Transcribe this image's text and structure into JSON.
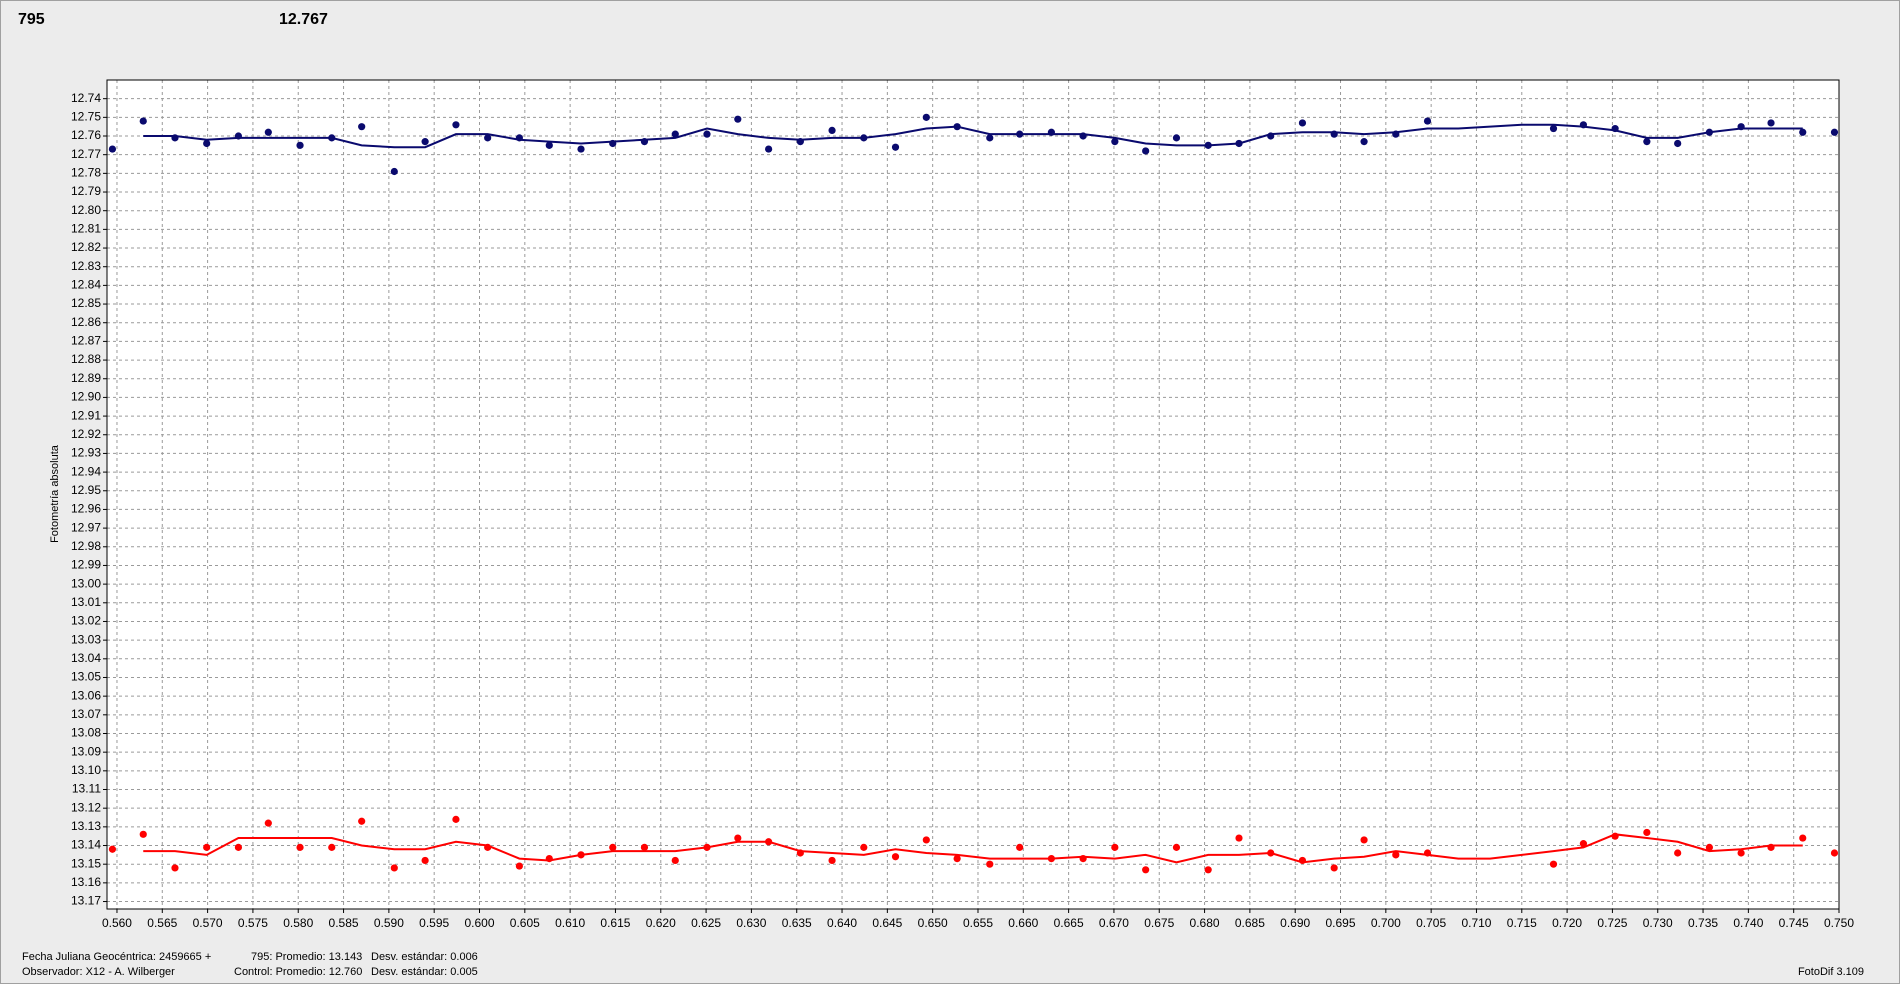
{
  "header": {
    "target": "795",
    "target_color": "#e00000",
    "control": "12.767",
    "control_color": "#1a1a8c"
  },
  "chart_data": {
    "type": "scatter",
    "y_label": "Fotometría absoluta",
    "inverted": true,
    "grid": true,
    "xlim": [
      0.5589,
      0.75
    ],
    "ylim": [
      12.73,
      13.174
    ],
    "xticks": [
      {
        "value": 0.56,
        "label": "0.560"
      },
      0.565,
      {
        "value": 0.57,
        "label": "0.570"
      },
      0.575,
      {
        "value": 0.58,
        "label": "0.580"
      },
      0.585,
      {
        "value": 0.59,
        "label": "0.590"
      },
      0.595,
      {
        "value": 0.6,
        "label": "0.600"
      },
      0.605,
      {
        "value": 0.61,
        "label": "0.610"
      },
      0.615,
      {
        "value": 0.62,
        "label": "0.620"
      },
      0.625,
      {
        "value": 0.63,
        "label": "0.630"
      },
      0.635,
      {
        "value": 0.64,
        "label": "0.640"
      },
      0.645,
      {
        "value": 0.65,
        "label": "0.650"
      },
      0.655,
      {
        "value": 0.66,
        "label": "0.660"
      },
      0.665,
      {
        "value": 0.67,
        "label": "0.670"
      },
      0.675,
      {
        "value": 0.68,
        "label": "0.680"
      },
      0.685,
      {
        "value": 0.69,
        "label": "0.690"
      },
      0.695,
      {
        "value": 0.7,
        "label": "0.700"
      },
      0.705,
      {
        "value": 0.71,
        "label": "0.710"
      },
      0.715,
      {
        "value": 0.72,
        "label": "0.720"
      },
      0.725,
      {
        "value": 0.73,
        "label": "0.730"
      },
      0.735,
      {
        "value": 0.74,
        "label": "0.740"
      },
      0.745,
      {
        "value": 0.75,
        "label": "0.750"
      }
    ],
    "yticks": [
      12.74,
      12.75,
      12.76,
      12.77,
      12.78,
      12.79,
      {
        "value": 12.8,
        "label": "12.80"
      },
      12.81,
      12.82,
      12.83,
      12.84,
      12.85,
      12.86,
      12.87,
      12.88,
      12.89,
      {
        "value": 12.9,
        "label": "12.90"
      },
      12.91,
      12.92,
      12.93,
      12.94,
      12.95,
      12.96,
      12.97,
      12.98,
      12.99,
      {
        "value": 13.0,
        "label": "13.00"
      },
      13.01,
      13.02,
      13.03,
      13.04,
      13.05,
      13.06,
      13.07,
      13.08,
      13.09,
      {
        "value": 13.1,
        "label": "13.10"
      },
      13.11,
      13.12,
      13.13,
      13.14,
      13.15,
      13.16,
      13.17
    ],
    "series": [
      {
        "kind": "points",
        "color": "#0a0a6e",
        "x": [
          0.5595,
          0.5629,
          0.5664,
          0.5699,
          0.5734,
          0.5767,
          0.5802,
          0.5837,
          0.587,
          0.5906,
          0.594,
          0.5974,
          0.6009,
          0.6044,
          0.6077,
          0.6112,
          0.6147,
          0.6182,
          0.6216,
          0.6251,
          0.6285,
          0.6319,
          0.6354,
          0.6389,
          0.6424,
          0.6459,
          0.6493,
          0.6527,
          0.6563,
          0.6596,
          0.6631,
          0.6666,
          0.6701,
          0.6735,
          0.6769,
          0.6804,
          0.6838,
          0.6873,
          0.6908,
          0.6943,
          0.6976,
          0.7011,
          0.7046,
          0.7185,
          0.7218,
          0.7253,
          0.7288,
          0.7322,
          0.7357,
          0.7392,
          0.7425,
          0.746,
          0.7495
        ],
        "values": [
          12.767,
          12.752,
          12.761,
          12.764,
          12.76,
          12.758,
          12.765,
          12.761,
          12.755,
          12.779,
          12.763,
          12.754,
          12.761,
          12.761,
          12.765,
          12.767,
          12.764,
          12.763,
          12.759,
          12.759,
          12.751,
          12.767,
          12.763,
          12.757,
          12.761,
          12.766,
          12.75,
          12.755,
          12.761,
          12.759,
          12.758,
          12.76,
          12.763,
          12.768,
          12.761,
          12.765,
          12.764,
          12.76,
          12.753,
          12.759,
          12.763,
          12.759,
          12.752,
          12.756,
          12.754,
          12.756,
          12.763,
          12.764,
          12.758,
          12.755,
          12.753,
          12.758,
          12.758
        ]
      },
      {
        "kind": "line",
        "color": "#0a0a6e",
        "x": [
          0.5629,
          0.5664,
          0.5699,
          0.5734,
          0.5767,
          0.5802,
          0.5837,
          0.587,
          0.5906,
          0.594,
          0.5974,
          0.6009,
          0.6044,
          0.6077,
          0.6112,
          0.6147,
          0.6182,
          0.6216,
          0.6251,
          0.6285,
          0.6319,
          0.6354,
          0.6389,
          0.6424,
          0.6459,
          0.6493,
          0.6527,
          0.6563,
          0.6596,
          0.6631,
          0.6666,
          0.6701,
          0.6735,
          0.6769,
          0.6804,
          0.6838,
          0.6873,
          0.6908,
          0.6943,
          0.6976,
          0.7011,
          0.7046,
          0.708,
          0.7115,
          0.715,
          0.7185,
          0.7218,
          0.7253,
          0.7288,
          0.7322,
          0.7357,
          0.7392,
          0.7425,
          0.746
        ],
        "values": [
          12.76,
          12.76,
          12.762,
          12.761,
          12.761,
          12.761,
          12.761,
          12.765,
          12.766,
          12.766,
          12.759,
          12.759,
          12.762,
          12.763,
          12.764,
          12.763,
          12.762,
          12.761,
          12.756,
          12.759,
          12.761,
          12.762,
          12.761,
          12.761,
          12.759,
          12.756,
          12.755,
          12.759,
          12.759,
          12.759,
          12.759,
          12.761,
          12.764,
          12.765,
          12.765,
          12.764,
          12.759,
          12.758,
          12.758,
          12.759,
          12.758,
          12.756,
          12.756,
          12.755,
          12.754,
          12.754,
          12.755,
          12.757,
          12.761,
          12.761,
          12.758,
          12.756,
          12.756,
          12.756
        ]
      },
      {
        "kind": "points",
        "color": "#ff0000",
        "x": [
          0.5595,
          0.5629,
          0.5664,
          0.5699,
          0.5734,
          0.5767,
          0.5802,
          0.5837,
          0.587,
          0.5906,
          0.594,
          0.5974,
          0.6009,
          0.6044,
          0.6077,
          0.6112,
          0.6147,
          0.6182,
          0.6216,
          0.6251,
          0.6285,
          0.6319,
          0.6354,
          0.6389,
          0.6424,
          0.6459,
          0.6493,
          0.6527,
          0.6563,
          0.6596,
          0.6631,
          0.6666,
          0.6701,
          0.6735,
          0.6769,
          0.6804,
          0.6838,
          0.6873,
          0.6908,
          0.6943,
          0.6976,
          0.7011,
          0.7046,
          0.7185,
          0.7218,
          0.7253,
          0.7288,
          0.7322,
          0.7357,
          0.7392,
          0.7425,
          0.746,
          0.7495
        ],
        "values": [
          13.142,
          13.134,
          13.152,
          13.141,
          13.141,
          13.128,
          13.141,
          13.141,
          13.127,
          13.152,
          13.148,
          13.126,
          13.141,
          13.151,
          13.147,
          13.145,
          13.141,
          13.141,
          13.148,
          13.141,
          13.136,
          13.138,
          13.144,
          13.148,
          13.141,
          13.146,
          13.137,
          13.147,
          13.15,
          13.141,
          13.147,
          13.147,
          13.141,
          13.153,
          13.141,
          13.153,
          13.136,
          13.144,
          13.148,
          13.152,
          13.137,
          13.145,
          13.144,
          13.15,
          13.139,
          13.135,
          13.133,
          13.144,
          13.141,
          13.144,
          13.141,
          13.136,
          13.144
        ]
      },
      {
        "kind": "line",
        "color": "#ff0000",
        "x": [
          0.5629,
          0.5664,
          0.5699,
          0.5734,
          0.5767,
          0.5802,
          0.5837,
          0.587,
          0.5906,
          0.594,
          0.5974,
          0.6009,
          0.6044,
          0.6077,
          0.6112,
          0.6147,
          0.6182,
          0.6216,
          0.6251,
          0.6285,
          0.6319,
          0.6354,
          0.6389,
          0.6424,
          0.6459,
          0.6493,
          0.6527,
          0.6563,
          0.6596,
          0.6631,
          0.6666,
          0.6701,
          0.6735,
          0.6769,
          0.6804,
          0.6838,
          0.6873,
          0.6908,
          0.6943,
          0.6976,
          0.7011,
          0.7046,
          0.708,
          0.7115,
          0.715,
          0.7185,
          0.7218,
          0.7253,
          0.7288,
          0.7322,
          0.7357,
          0.7392,
          0.7425,
          0.746
        ],
        "values": [
          13.143,
          13.143,
          13.145,
          13.136,
          13.136,
          13.136,
          13.136,
          13.14,
          13.142,
          13.142,
          13.138,
          13.14,
          13.147,
          13.148,
          13.145,
          13.143,
          13.143,
          13.143,
          13.141,
          13.138,
          13.138,
          13.143,
          13.144,
          13.145,
          13.142,
          13.144,
          13.145,
          13.147,
          13.147,
          13.147,
          13.146,
          13.147,
          13.145,
          13.149,
          13.145,
          13.145,
          13.144,
          13.149,
          13.147,
          13.146,
          13.143,
          13.145,
          13.147,
          13.147,
          13.145,
          13.143,
          13.141,
          13.134,
          13.136,
          13.138,
          13.143,
          13.142,
          13.14,
          13.14
        ]
      }
    ]
  },
  "footer": {
    "date": "Fecha Juliana Geocéntrica: 2459665 +",
    "observer": "Observador: X12 - A. Wilberger",
    "stats": [
      [
        "795: Promedio: 13.143",
        "Desv. estándar: 0.006"
      ],
      [
        "Control: Promedio: 12.760",
        "Desv. estándar: 0.005"
      ]
    ],
    "version": "FotoDif 3.109"
  }
}
